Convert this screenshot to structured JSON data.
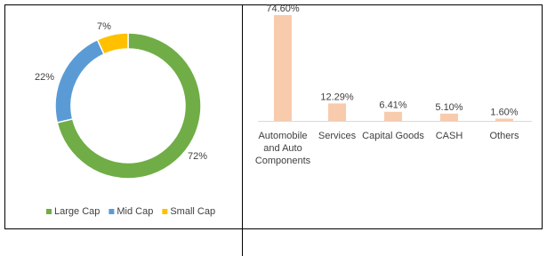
{
  "chart_data": [
    {
      "type": "donut",
      "categories": [
        "Large Cap",
        "Mid Cap",
        "Small Cap"
      ],
      "values": [
        72,
        22,
        7
      ],
      "value_labels": [
        "72%",
        "22%",
        "7%"
      ],
      "colors": [
        "#70ad47",
        "#5b9bd5",
        "#ffc000"
      ],
      "legend": "bottom"
    },
    {
      "type": "bar",
      "categories": [
        "Automobile and Auto Components",
        "Services",
        "Capital Goods",
        "CASH",
        "Others"
      ],
      "values": [
        74.6,
        12.29,
        6.41,
        5.1,
        1.6
      ],
      "value_labels": [
        "74.60%",
        "12.29%",
        "6.41%",
        "5.10%",
        "1.60%"
      ],
      "color": "#f8cbad"
    }
  ]
}
